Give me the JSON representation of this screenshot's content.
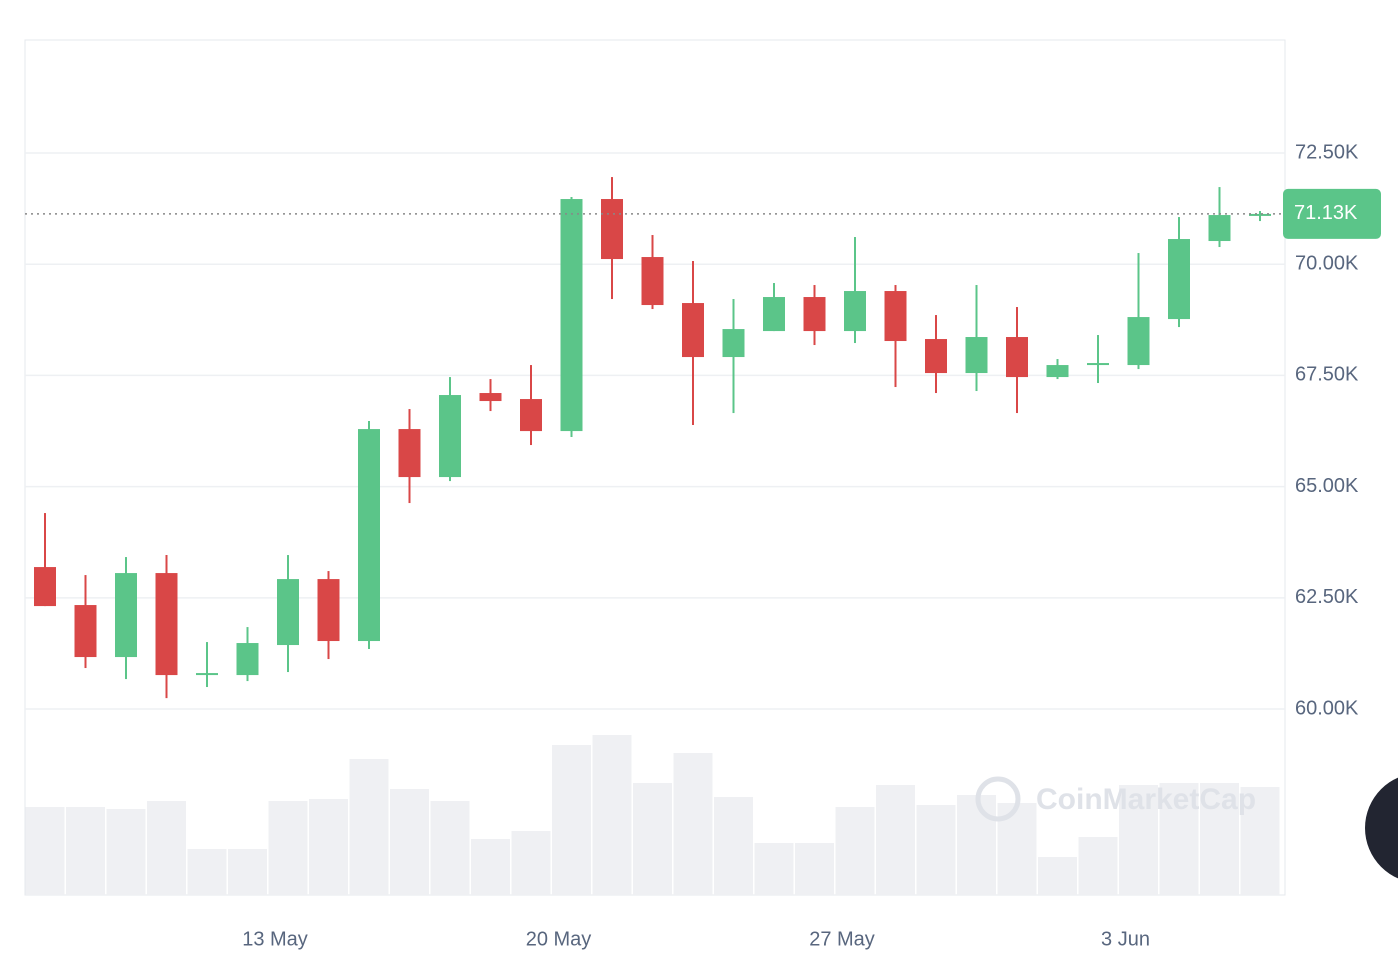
{
  "chart_data": {
    "type": "candlestick",
    "categories": [
      null,
      null,
      null,
      null,
      null,
      null,
      "13 May",
      null,
      null,
      null,
      null,
      null,
      null,
      "20 May",
      null,
      null,
      null,
      null,
      null,
      null,
      "27 May",
      null,
      null,
      null,
      null,
      null,
      null,
      "3 Jun",
      null,
      null,
      null
    ],
    "open": [
      63192,
      62338,
      61169,
      63057,
      60764,
      60764,
      61439,
      62922,
      61529,
      66294,
      65215,
      67104,
      66969,
      66249,
      71465,
      70161,
      69127,
      67913,
      68497,
      69262,
      68497,
      69397,
      68318,
      67553,
      68363,
      67463,
      67733,
      67733,
      68767,
      70521,
      71105
    ],
    "high": [
      64406,
      63012,
      63417,
      63462,
      61506,
      61843,
      63462,
      63102,
      66474,
      66744,
      67463,
      67418,
      67733,
      71510,
      71959,
      70656,
      70071,
      69217,
      69577,
      69532,
      70611,
      69532,
      68857,
      69532,
      69037,
      67868,
      68408,
      70251,
      71060,
      71734,
      71195
    ],
    "low": [
      62315,
      60922,
      60674,
      60247,
      60495,
      60629,
      60832,
      61124,
      61349,
      64631,
      65125,
      66699,
      65935,
      66115,
      69217,
      68992,
      66384,
      66654,
      68497,
      68183,
      68228,
      67239,
      67104,
      67149,
      66654,
      67418,
      67329,
      67643,
      68587,
      70386,
      70970
    ],
    "close": [
      62315,
      61169,
      63057,
      60764,
      60809,
      61484,
      62922,
      61529,
      66294,
      65215,
      67059,
      66924,
      66249,
      71465,
      70116,
      69082,
      67913,
      68542,
      69262,
      68497,
      69397,
      68273,
      67553,
      68363,
      67463,
      67733,
      67778,
      68812,
      70566,
      71105,
      71130
    ],
    "volume": [
      88,
      88,
      86,
      94,
      46,
      46,
      94,
      96,
      136,
      106,
      94,
      56,
      64,
      150,
      160,
      112,
      142,
      98,
      52,
      52,
      88,
      110,
      90,
      100,
      92,
      38,
      58,
      110,
      112,
      112,
      108
    ],
    "up_color": "#5bc589",
    "down_color": "#d94747",
    "volume_color": "#eff0f3",
    "ylim": [
      55820,
      75040
    ],
    "yticks": [
      {
        "value": 60000,
        "label": "60.00K"
      },
      {
        "value": 62500,
        "label": "62.50K"
      },
      {
        "value": 65000,
        "label": "65.00K"
      },
      {
        "value": 67500,
        "label": "67.50K"
      },
      {
        "value": 70000,
        "label": "70.00K"
      },
      {
        "value": 72500,
        "label": "72.50K"
      }
    ],
    "last_price": {
      "value": 71130,
      "label": "71.13K"
    },
    "watermark": "CoinMarketCap",
    "grid": true
  }
}
